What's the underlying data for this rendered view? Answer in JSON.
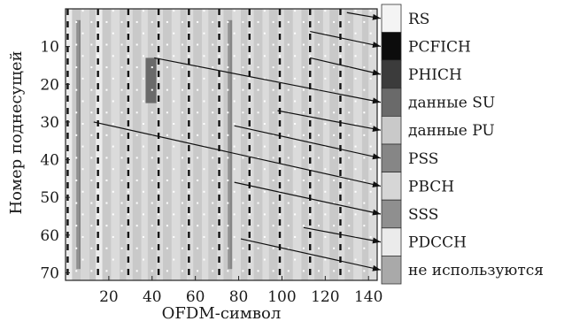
{
  "chart_data": {
    "type": "heatmap",
    "title": "",
    "xlabel": "OFDM-символ",
    "ylabel": "Номер поднесущей",
    "xlim": [
      0,
      144
    ],
    "ylim": [
      0,
      72
    ],
    "x_ticks": [
      20,
      40,
      60,
      80,
      100,
      120,
      140
    ],
    "y_ticks": [
      10,
      20,
      30,
      40,
      50,
      60,
      70
    ],
    "legend_position": "right",
    "categories": [
      {
        "name": "RS",
        "color": "#f4f4f4"
      },
      {
        "name": "PCFICH",
        "color": "#0c0c0c"
      },
      {
        "name": "PHICH",
        "color": "#3b3b3b"
      },
      {
        "name": "данные SU",
        "color": "#6a6a6a"
      },
      {
        "name": "данные PU",
        "color": "#c9c9c9"
      },
      {
        "name": "PSS",
        "color": "#868686"
      },
      {
        "name": "PBCH",
        "color": "#d6d6d6"
      },
      {
        "name": "SSS",
        "color": "#8f8f8f"
      },
      {
        "name": "PDCCH",
        "color": "#ebebeb"
      },
      {
        "name": "не используются",
        "color": "#a9a9a9"
      }
    ],
    "regions": [
      {
        "category": "данные PU",
        "x": [
          0,
          144
        ],
        "y": [
          0,
          72
        ]
      },
      {
        "category": "PDCCH",
        "x": [
          0,
          3
        ],
        "y": [
          0,
          72
        ]
      },
      {
        "category": "PSS",
        "x": [
          6,
          7
        ],
        "y": [
          3,
          69
        ]
      },
      {
        "category": "SSS",
        "x": [
          5,
          6
        ],
        "y": [
          3,
          69
        ]
      },
      {
        "category": "PBCH",
        "x": [
          7,
          11
        ],
        "y": [
          0,
          72
        ]
      },
      {
        "category": "PDCCH",
        "x": [
          14,
          17
        ],
        "y": [
          0,
          72
        ]
      },
      {
        "category": "данные SU",
        "x": [
          37,
          42
        ],
        "y": [
          13,
          25
        ]
      },
      {
        "category": "PSS",
        "x": [
          76,
          77
        ],
        "y": [
          3,
          69
        ]
      },
      {
        "category": "SSS",
        "x": [
          75,
          76
        ],
        "y": [
          3,
          69
        ]
      }
    ],
    "rs_columns": [
      1,
      5,
      8,
      12,
      15,
      19,
      22,
      26,
      29,
      33,
      36,
      40,
      43,
      47,
      50,
      54,
      57,
      61,
      64,
      68,
      71,
      75,
      78,
      82,
      85,
      89,
      92,
      96,
      99,
      103,
      106,
      110,
      113,
      117,
      120,
      124,
      127,
      131,
      134,
      138,
      141
    ],
    "dashed_columns": [
      1,
      15,
      29,
      43,
      57,
      71,
      85,
      99,
      113,
      127
    ],
    "light_bands": [
      [
        0,
        3
      ],
      [
        7,
        11
      ],
      [
        14,
        17
      ],
      [
        21,
        25
      ],
      [
        28,
        31
      ],
      [
        35,
        38
      ],
      [
        42,
        45
      ],
      [
        49,
        53
      ],
      [
        56,
        59
      ],
      [
        63,
        66
      ],
      [
        70,
        73
      ],
      [
        77,
        81
      ],
      [
        84,
        87
      ],
      [
        91,
        94
      ],
      [
        98,
        101
      ],
      [
        105,
        109
      ],
      [
        112,
        115
      ],
      [
        119,
        122
      ],
      [
        126,
        129
      ],
      [
        133,
        137
      ],
      [
        140,
        144
      ]
    ],
    "annotations": [
      {
        "category": "RS",
        "from": [
          130,
          1
        ]
      },
      {
        "category": "PCFICH",
        "from": [
          113,
          6
        ]
      },
      {
        "category": "PHICH",
        "from": [
          113,
          13
        ]
      },
      {
        "category": "данные SU",
        "from": [
          41,
          13
        ]
      },
      {
        "category": "данные PU",
        "from": [
          98,
          27
        ]
      },
      {
        "category": "PSS",
        "from": [
          78,
          31
        ]
      },
      {
        "category": "PBCH",
        "from": [
          13,
          30
        ]
      },
      {
        "category": "SSS",
        "from": [
          78,
          46
        ]
      },
      {
        "category": "PDCCH",
        "from": [
          110,
          58
        ]
      },
      {
        "category": "не используются",
        "from": [
          81,
          61
        ]
      }
    ]
  }
}
